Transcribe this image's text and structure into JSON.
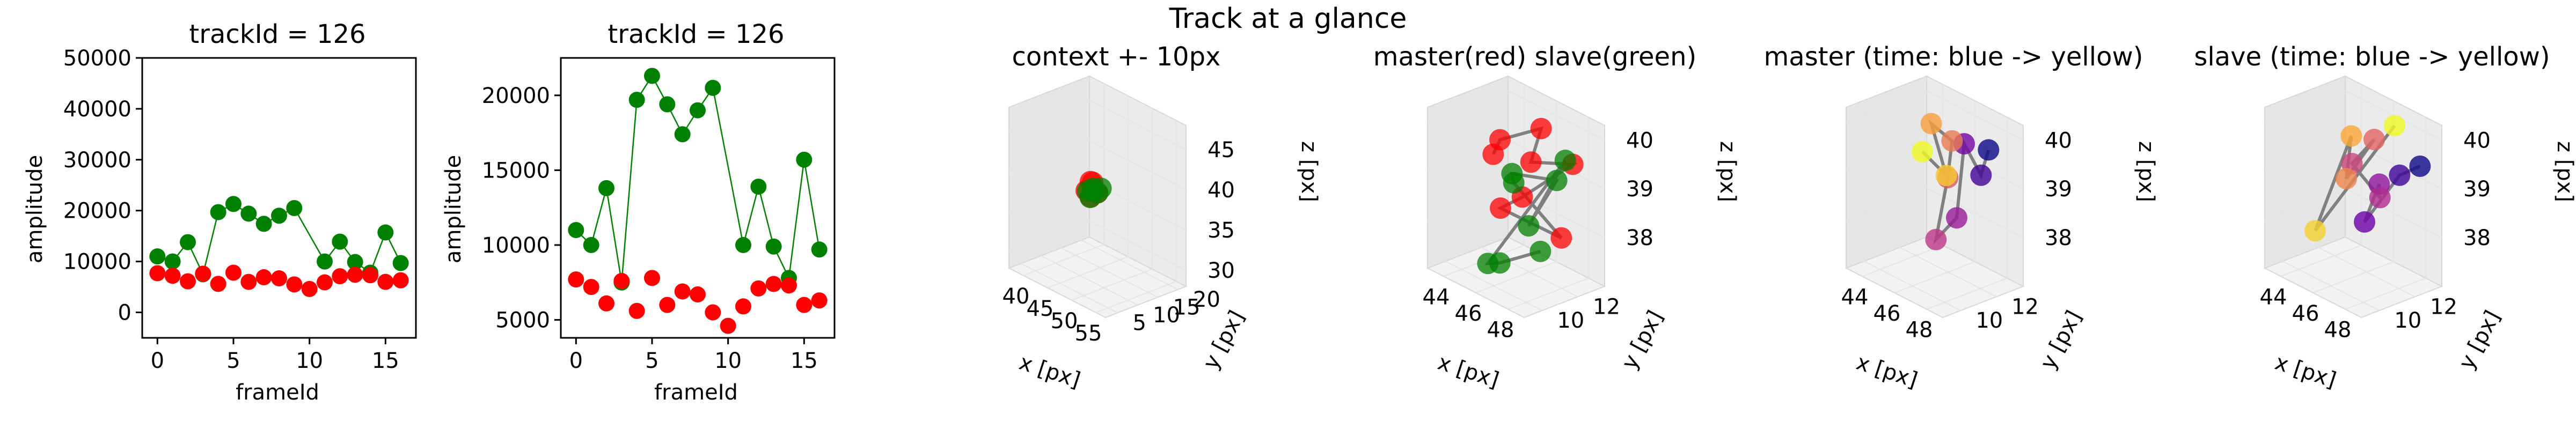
{
  "figure": {
    "title": "Track at a glance"
  },
  "chart_data": [
    {
      "type": "scatter",
      "title": "trackId = 126",
      "xlabel": "frameId",
      "ylabel": "amplitude",
      "xlim": [
        -1,
        17
      ],
      "ylim": [
        -5000,
        50000
      ],
      "x_ticks": [
        0,
        5,
        10,
        15
      ],
      "y_ticks": [
        0,
        10000,
        20000,
        30000,
        40000,
        50000
      ],
      "series": [
        {
          "color": "#008000",
          "connected": true,
          "x": [
            0,
            1,
            2,
            3,
            4,
            5,
            6,
            7,
            8,
            9,
            11,
            12,
            13,
            14,
            15,
            16
          ],
          "y": [
            11000,
            10000,
            13800,
            7500,
            19700,
            21300,
            19400,
            17400,
            19000,
            20500,
            10000,
            13900,
            9900,
            7800,
            15700,
            9700
          ]
        },
        {
          "color": "#ff0000",
          "connected": false,
          "x": [
            0,
            1,
            2,
            3,
            4,
            5,
            6,
            7,
            8,
            9,
            10,
            11,
            12,
            13,
            14,
            15,
            16
          ],
          "y": [
            7700,
            7200,
            6100,
            7600,
            5600,
            7800,
            6000,
            6900,
            6700,
            5500,
            4600,
            5900,
            7100,
            7400,
            7300,
            6000,
            6300
          ]
        }
      ]
    },
    {
      "type": "scatter",
      "title": "trackId = 126",
      "xlabel": "frameId",
      "ylabel": "amplitude",
      "xlim": [
        -1,
        17
      ],
      "ylim": [
        3800,
        22500
      ],
      "x_ticks": [
        0,
        5,
        10,
        15
      ],
      "y_ticks": [
        5000,
        10000,
        15000,
        20000
      ],
      "series": [
        {
          "color": "#008000",
          "connected": true,
          "x": [
            0,
            1,
            2,
            3,
            4,
            5,
            6,
            7,
            8,
            9,
            11,
            12,
            13,
            14,
            15,
            16
          ],
          "y": [
            11000,
            10000,
            13800,
            7500,
            19700,
            21300,
            19400,
            17400,
            19000,
            20500,
            10000,
            13900,
            9900,
            7800,
            15700,
            9700
          ]
        },
        {
          "color": "#ff0000",
          "connected": false,
          "x": [
            0,
            1,
            2,
            3,
            4,
            5,
            6,
            7,
            8,
            9,
            10,
            11,
            12,
            13,
            14,
            15,
            16
          ],
          "y": [
            7700,
            7200,
            6100,
            7600,
            5600,
            7800,
            6000,
            6900,
            6700,
            5500,
            4600,
            5900,
            7100,
            7400,
            7300,
            6000,
            6300
          ]
        }
      ]
    },
    {
      "type": "scatter3d",
      "title": "context +- 10px",
      "xlabel": "x [px]",
      "ylabel": "y [px]",
      "zlabel": "z [px]",
      "xlim": [
        37,
        57
      ],
      "ylim": [
        2,
        22
      ],
      "zlim": [
        28,
        48
      ],
      "x_ticks": [
        40,
        45,
        50,
        55
      ],
      "y_ticks": [
        5,
        10,
        15,
        20
      ],
      "z_ticks": [
        30,
        35,
        40,
        45
      ],
      "coloring": "master red, slave green",
      "points": {
        "master": [
          [
            45.5,
            11,
            38.5
          ],
          [
            46,
            12,
            39.5
          ],
          [
            46.5,
            11.5,
            39
          ],
          [
            47,
            12,
            38.5
          ],
          [
            46.8,
            10.5,
            38.2
          ],
          [
            46.2,
            11.2,
            39.8
          ]
        ],
        "slave": [
          [
            46.5,
            10.8,
            38
          ],
          [
            47.2,
            11.8,
            38.6
          ],
          [
            45.8,
            12.2,
            38.4
          ],
          [
            46.9,
            11,
            39.2
          ],
          [
            46.3,
            10.4,
            38.8
          ],
          [
            47.4,
            12.4,
            39.1
          ]
        ]
      }
    },
    {
      "type": "scatter3d",
      "title": "master(red) slave(green)",
      "xlabel": "x [px]",
      "ylabel": "y [px]",
      "zlabel": "z [px]",
      "xlim": [
        43,
        49
      ],
      "ylim": [
        9,
        13.5
      ],
      "zlim": [
        37,
        40.3
      ],
      "x_ticks": [
        44,
        46,
        48
      ],
      "y_ticks": [
        10,
        12
      ],
      "z_ticks": [
        38,
        39,
        40
      ],
      "coloring": "master red, slave green",
      "points": {
        "master": [
          [
            44.3,
            11.5,
            39.2
          ],
          [
            45.5,
            10.8,
            39.8
          ],
          [
            46.5,
            12.2,
            40
          ],
          [
            47.2,
            11,
            39.6
          ],
          [
            47.8,
            12.8,
            39.4
          ],
          [
            45,
            12.5,
            38.3
          ],
          [
            46.2,
            10.2,
            38.6
          ],
          [
            48.2,
            11.8,
            38.1
          ]
        ],
        "slave": [
          [
            44.8,
            12.2,
            38.6
          ],
          [
            45.8,
            11.2,
            39.1
          ],
          [
            46.8,
            12.8,
            38.9
          ],
          [
            47.5,
            10.6,
            38.4
          ],
          [
            48,
            12.2,
            39.6
          ],
          [
            45.3,
            10.3,
            37.3
          ],
          [
            46.6,
            9.8,
            37.6
          ],
          [
            47.9,
            10.9,
            37.9
          ]
        ]
      }
    },
    {
      "type": "scatter3d",
      "title": "master (time: blue -> yellow)",
      "xlabel": "x [px]",
      "ylabel": "y [px]",
      "zlabel": "z [px]",
      "xlim": [
        43,
        49
      ],
      "ylim": [
        9,
        13.5
      ],
      "zlim": [
        37,
        40.3
      ],
      "x_ticks": [
        44,
        46,
        48
      ],
      "y_ticks": [
        10,
        12
      ],
      "z_ticks": [
        38,
        39,
        40
      ],
      "coloring": "time: blue -> yellow",
      "points": [
        [
          47.4,
          13,
          39.6
        ],
        [
          47.6,
          12.4,
          39.2
        ],
        [
          47,
          12,
          39.8
        ],
        [
          47.2,
          11.4,
          38.4
        ],
        [
          46.8,
          10.6,
          38
        ],
        [
          46.2,
          11.8,
          39
        ],
        [
          45.8,
          12.4,
          39.6
        ],
        [
          45.4,
          11.6,
          40
        ],
        [
          45,
          12.8,
          38.7
        ],
        [
          44.4,
          12,
          39.2
        ]
      ]
    },
    {
      "type": "scatter3d",
      "title": "slave (time: blue -> yellow)",
      "xlabel": "x [px]",
      "ylabel": "y [px]",
      "zlabel": "z [px]",
      "xlim": [
        43,
        49
      ],
      "ylim": [
        9,
        13.5
      ],
      "zlim": [
        37,
        40.3
      ],
      "x_ticks": [
        44,
        46,
        48
      ],
      "y_ticks": [
        10,
        12
      ],
      "z_ticks": [
        38,
        39,
        40
      ],
      "coloring": "time: blue -> yellow",
      "points": [
        [
          48.2,
          13,
          39.4
        ],
        [
          47.6,
          12.4,
          39.2
        ],
        [
          47.2,
          10.8,
          38.4
        ],
        [
          47,
          11.8,
          39
        ],
        [
          46.6,
          12.2,
          38.6
        ],
        [
          46.2,
          11,
          39.4
        ],
        [
          45.8,
          12.6,
          39.6
        ],
        [
          45.4,
          11.4,
          38.9
        ],
        [
          44.6,
          12.4,
          39.5
        ],
        [
          44.8,
          10.2,
          37.9
        ],
        [
          46.4,
          13.2,
          39.9
        ]
      ]
    }
  ]
}
